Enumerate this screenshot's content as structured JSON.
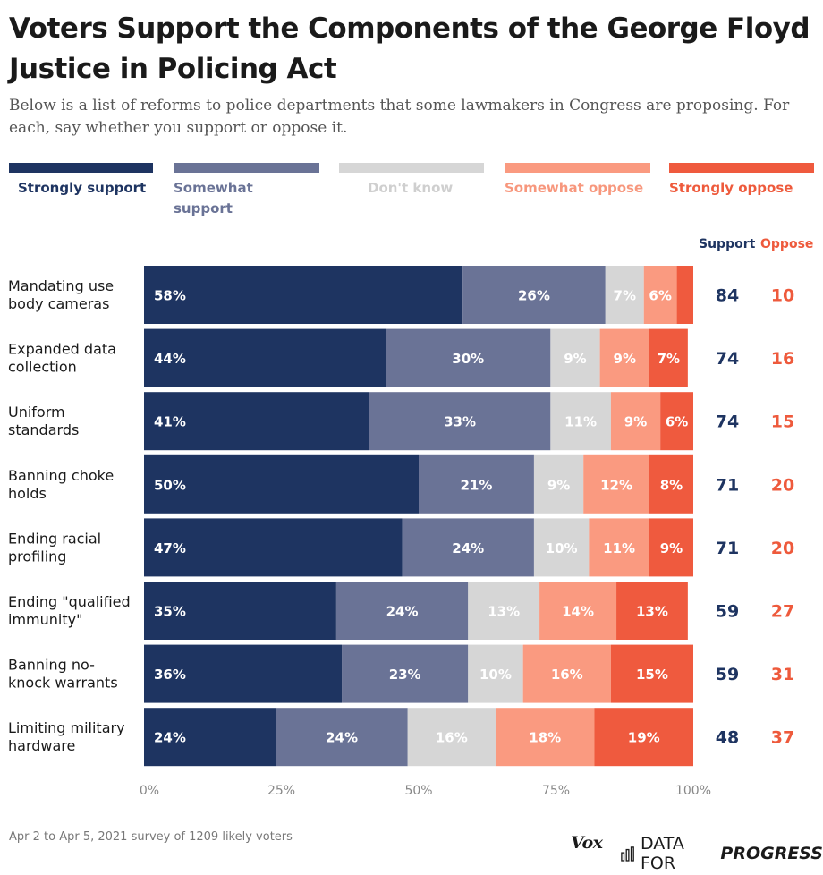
{
  "title": "Voters Support the Components of the George Floyd Justice in Policing Act",
  "subtitle": "Below is a list of reforms to police departments that some lawmakers in Congress are proposing. For each, say whether you support or oppose it.",
  "legend": [
    {
      "label": "Strongly support",
      "color": "#1e3461",
      "text_color": "#1e3461"
    },
    {
      "label": "Somewhat support",
      "color": "#6a7396",
      "text_color": "#6a7396"
    },
    {
      "label": "Don't know",
      "color": "#d6d6d6",
      "text_color": "#cfcfcf"
    },
    {
      "label": "Somewhat oppose",
      "color": "#fa9a80",
      "text_color": "#f7977d"
    },
    {
      "label": "Strongly oppose",
      "color": "#ef5a3e",
      "text_color": "#ee5a3c"
    }
  ],
  "columns": {
    "support": "Support",
    "oppose": "Oppose"
  },
  "chart_data": {
    "type": "bar",
    "orientation": "horizontal",
    "stacked": true,
    "categories": [
      "Mandating use body cameras",
      "Expanded data collection",
      "Uniform standards",
      "Banning choke holds",
      "Ending racial profiling",
      "Ending \"qualified immunity\"",
      "Banning no-knock warrants",
      "Limiting military hardware"
    ],
    "category_lines": [
      [
        "Mandating use",
        "body cameras"
      ],
      [
        "Expanded data",
        "collection"
      ],
      [
        "Uniform",
        "standards"
      ],
      [
        "Banning choke",
        "holds"
      ],
      [
        "Ending racial",
        "profiling"
      ],
      [
        "Ending \"qualified",
        "immunity\""
      ],
      [
        "Banning no-",
        "knock warrants"
      ],
      [
        "Limiting military",
        "hardware"
      ]
    ],
    "series": [
      {
        "name": "Strongly support",
        "values": [
          58,
          44,
          41,
          50,
          47,
          35,
          36,
          24
        ]
      },
      {
        "name": "Somewhat support",
        "values": [
          26,
          30,
          33,
          21,
          24,
          24,
          23,
          24
        ]
      },
      {
        "name": "Don't know",
        "values": [
          7,
          9,
          11,
          9,
          10,
          13,
          10,
          16
        ]
      },
      {
        "name": "Somewhat oppose",
        "values": [
          6,
          9,
          9,
          12,
          11,
          14,
          16,
          18
        ]
      },
      {
        "name": "Strongly oppose",
        "values": [
          4,
          7,
          6,
          8,
          9,
          13,
          15,
          19
        ]
      }
    ],
    "value_labels": [
      [
        "58%",
        "26%",
        "7%",
        "6%",
        ""
      ],
      [
        "44%",
        "30%",
        "9%",
        "9%",
        "7%"
      ],
      [
        "41%",
        "33%",
        "11%",
        "9%",
        "6%"
      ],
      [
        "50%",
        "21%",
        "9%",
        "12%",
        "8%"
      ],
      [
        "47%",
        "24%",
        "10%",
        "11%",
        "9%"
      ],
      [
        "35%",
        "24%",
        "13%",
        "14%",
        "13%"
      ],
      [
        "36%",
        "23%",
        "10%",
        "16%",
        "15%"
      ],
      [
        "24%",
        "24%",
        "16%",
        "18%",
        "19%"
      ]
    ],
    "support_totals": [
      84,
      74,
      74,
      71,
      71,
      59,
      59,
      48
    ],
    "oppose_totals": [
      10,
      16,
      15,
      20,
      20,
      27,
      31,
      37
    ],
    "xlim": [
      0,
      100
    ],
    "xticks": [
      "0%",
      "25%",
      "50%",
      "75%",
      "100%"
    ],
    "grid": false,
    "legend_position": "top"
  },
  "footnote": "Apr 2 to Apr 5, 2021 survey of 1209 likely voters",
  "branding": {
    "vox": "Vox",
    "dfp_regular": "DATA FOR",
    "dfp_bold": "PROGRESS",
    "icon": "bar-chart-icon"
  }
}
